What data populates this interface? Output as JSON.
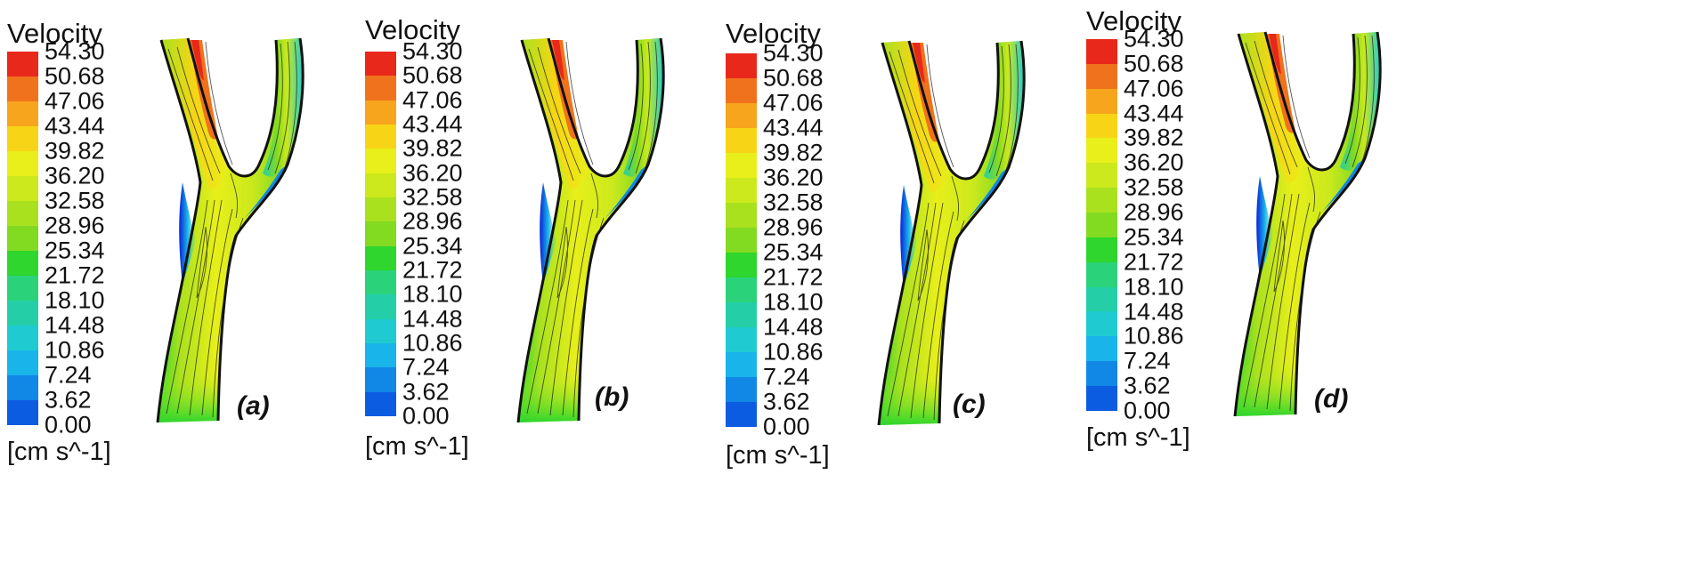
{
  "colorbar": {
    "title": "Velocity",
    "units": "[cm s^-1]",
    "ticks": [
      "54.30",
      "50.68",
      "47.06",
      "43.44",
      "39.82",
      "36.20",
      "32.58",
      "28.96",
      "25.34",
      "21.72",
      "18.10",
      "14.48",
      "10.86",
      "7.24",
      "3.62",
      "0.00"
    ],
    "colors_top_to_bottom": [
      "#e8281a",
      "#f0721c",
      "#f7a51d",
      "#f7d516",
      "#e8ef1a",
      "#cbe91d",
      "#a9e11f",
      "#82da21",
      "#2ed62d",
      "#2ad37a",
      "#24cfa8",
      "#1fcbd1",
      "#18b4ea",
      "#1187e6",
      "#0b5ce0",
      "#0a22d8"
    ]
  },
  "panels": [
    {
      "label": "(a)"
    },
    {
      "label": "(b)"
    },
    {
      "label": "(c)"
    },
    {
      "label": "(d)"
    }
  ],
  "colors": {
    "wall": "#111111",
    "contour_line": "#1a1a1a",
    "low_velocity": "#1b3fd9",
    "mid_velocity": "#2ed62d",
    "high_velocity": "#e8281a"
  }
}
